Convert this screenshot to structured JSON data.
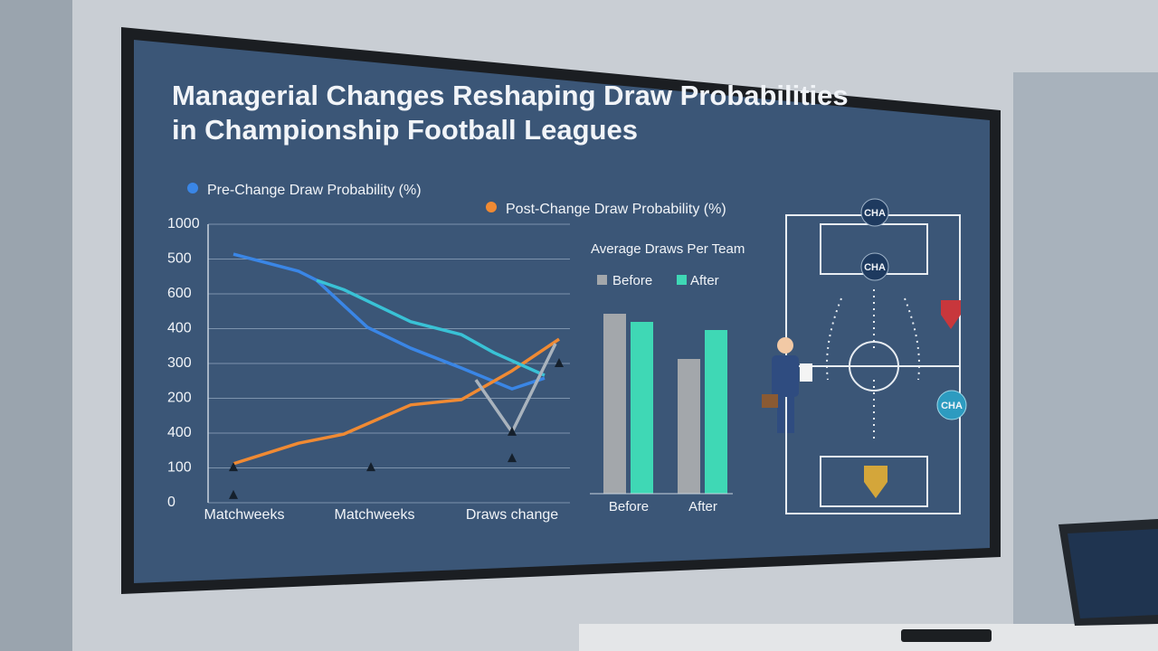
{
  "chart_data": [
    {
      "type": "line",
      "title": [
        "Managerial Changes Reshaping Draw Probabilities",
        "in Championship Football Leagues"
      ],
      "xlim": [
        0,
        10
      ],
      "ylim": [
        0,
        800
      ],
      "xticks": [
        {
          "value": 1,
          "label": "Matchweeks"
        },
        {
          "value": 4.6,
          "label": "Matchweeks"
        },
        {
          "value": 8.4,
          "label": "Draws change"
        }
      ],
      "yticks": [
        0,
        100,
        {
          "value": 200,
          "label": "400"
        },
        {
          "value": 300,
          "label": "200"
        },
        {
          "value": 400,
          "label": "300"
        },
        {
          "value": 500,
          "label": "400"
        },
        600,
        {
          "value": 700,
          "label": "500"
        },
        {
          "value": 800,
          "label": "1000"
        }
      ],
      "grid": true,
      "series": [
        {
          "name": "Pre-Change Draw Probability (%)",
          "color": "#3a86e6",
          "x": [
            0.7,
            2.5,
            3,
            4.4,
            5.6,
            7,
            8.4,
            9.3
          ],
          "values": [
            714,
            665,
            639,
            504,
            444,
            387,
            327,
            358
          ]
        },
        {
          "name": "Post-Change Draw Probability (%)",
          "color": "#f08a33",
          "x": [
            0.7,
            2.5,
            3.75,
            5.6,
            7,
            8.4,
            9.7
          ],
          "values": [
            112,
            171,
            197,
            281,
            296,
            379,
            470
          ]
        },
        {
          "color": "#39c2d6",
          "x": [
            3,
            3.75,
            5.6,
            7,
            7.9,
            9.3
          ],
          "values": [
            639,
            612,
            520,
            483,
            431,
            366
          ]
        },
        {
          "color": "#a9b3bd",
          "x": [
            7.4,
            8.4,
            9.6
          ],
          "values": [
            353,
            203,
            457
          ]
        }
      ],
      "markers": {
        "x": [
          0.7,
          0.7,
          4.5,
          8.4,
          8.4,
          9.7
        ],
        "values": [
          101,
          21,
          101,
          203,
          127,
          400
        ]
      }
    },
    {
      "type": "bar",
      "title": "Average Draws Per Team",
      "categories": [
        "Before",
        "After"
      ],
      "series": [
        {
          "name": "Before",
          "color": "#a3a7ab",
          "values": [
            199,
            149
          ]
        },
        {
          "name": "After",
          "color": "#3fd8b5",
          "values": [
            190,
            181
          ]
        }
      ]
    }
  ],
  "pitch": {
    "badges": [
      "CHA",
      "CHA",
      "CHA"
    ]
  }
}
